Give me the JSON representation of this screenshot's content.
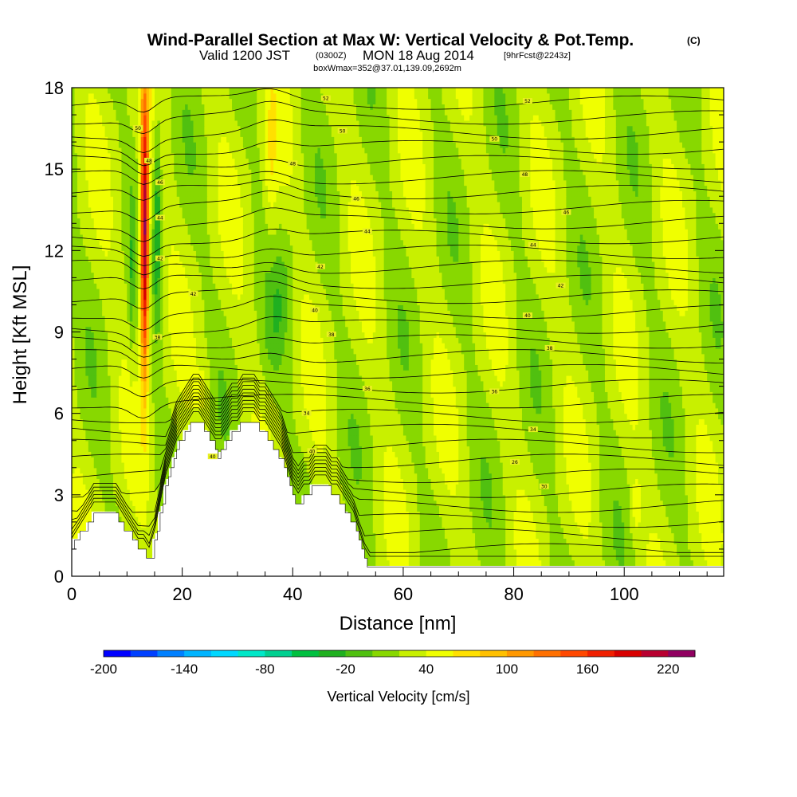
{
  "chart_data": {
    "type": "heatmap",
    "title": "Wind-Parallel Section at Max W: Vertical Velocity & Pot.Temp.",
    "title_mark": "(C)",
    "subtitle_main": "Valid 1200 JST",
    "subtitle_small1": "(0300Z)",
    "subtitle_mid": "MON 18 Aug 2014",
    "subtitle_small2": "[9hrFcst@2243z]",
    "subtitle3": "boxWmax=352@37.01,139.09,2692m",
    "xlabel": "Distance [nm]",
    "ylabel": "Height [Kft MSL]",
    "xlim": [
      0,
      118
    ],
    "ylim": [
      0,
      18
    ],
    "x_ticks": [
      "0",
      "20",
      "40",
      "60",
      "80",
      "100"
    ],
    "y_ticks": [
      "0",
      "3",
      "6",
      "9",
      "12",
      "15",
      "18"
    ],
    "x_tick_values": [
      0,
      20,
      40,
      60,
      80,
      100
    ],
    "y_tick_values": [
      0,
      3,
      6,
      9,
      12,
      15,
      18
    ],
    "colorbar": {
      "label": "Vertical Velocity [cm/s]",
      "min": -200,
      "max": 240,
      "step": 20,
      "tick_labels": [
        "-200",
        "-140",
        "-80",
        "-20",
        "40",
        "100",
        "160",
        "220"
      ],
      "tick_values": [
        -200,
        -140,
        -80,
        -20,
        40,
        100,
        160,
        220
      ],
      "colors": [
        "#0000ff",
        "#0040ff",
        "#0080ff",
        "#00b4ff",
        "#00d8ff",
        "#00e8c8",
        "#00d090",
        "#00c040",
        "#20b020",
        "#50c010",
        "#88d800",
        "#c8f000",
        "#f0ff00",
        "#ffe000",
        "#ffc000",
        "#ff9800",
        "#ff7000",
        "#ff4800",
        "#f02000",
        "#d80000",
        "#b80030",
        "#900060"
      ]
    },
    "theta_labels": [
      {
        "text": "26",
        "x": 80.2,
        "y": 4.2
      },
      {
        "text": "30",
        "x": 85.5,
        "y": 3.3
      },
      {
        "text": "34",
        "x": 83.5,
        "y": 5.4
      },
      {
        "text": "34",
        "x": 42.5,
        "y": 6.0
      },
      {
        "text": "36",
        "x": 76.5,
        "y": 6.8
      },
      {
        "text": "36",
        "x": 53.5,
        "y": 6.9
      },
      {
        "text": "38",
        "x": 86.5,
        "y": 8.4
      },
      {
        "text": "38",
        "x": 47.0,
        "y": 8.9
      },
      {
        "text": "40",
        "x": 82.5,
        "y": 9.6
      },
      {
        "text": "40",
        "x": 44.0,
        "y": 9.8
      },
      {
        "text": "42",
        "x": 88.5,
        "y": 10.7
      },
      {
        "text": "42",
        "x": 45.0,
        "y": 11.4
      },
      {
        "text": "42",
        "x": 22.0,
        "y": 10.4
      },
      {
        "text": "44",
        "x": 83.5,
        "y": 12.2
      },
      {
        "text": "44",
        "x": 53.5,
        "y": 12.7
      },
      {
        "text": "46",
        "x": 89.5,
        "y": 13.4
      },
      {
        "text": "46",
        "x": 51.5,
        "y": 13.9
      },
      {
        "text": "48",
        "x": 82.0,
        "y": 14.8
      },
      {
        "text": "48",
        "x": 40.0,
        "y": 15.2
      },
      {
        "text": "50",
        "x": 76.5,
        "y": 16.1
      },
      {
        "text": "50",
        "x": 49.0,
        "y": 16.4
      },
      {
        "text": "52",
        "x": 82.5,
        "y": 17.5
      },
      {
        "text": "52",
        "x": 46.0,
        "y": 17.6
      },
      {
        "text": "50",
        "x": 12.0,
        "y": 16.5
      },
      {
        "text": "48",
        "x": 14.0,
        "y": 15.3
      },
      {
        "text": "46",
        "x": 16.0,
        "y": 14.5
      },
      {
        "text": "44",
        "x": 16.0,
        "y": 13.2
      },
      {
        "text": "42",
        "x": 16.0,
        "y": 11.7
      },
      {
        "text": "38",
        "x": 15.5,
        "y": 8.8
      },
      {
        "text": "40",
        "x": 25.5,
        "y": 4.4
      },
      {
        "text": "40",
        "x": 43.5,
        "y": 4.6
      }
    ]
  }
}
